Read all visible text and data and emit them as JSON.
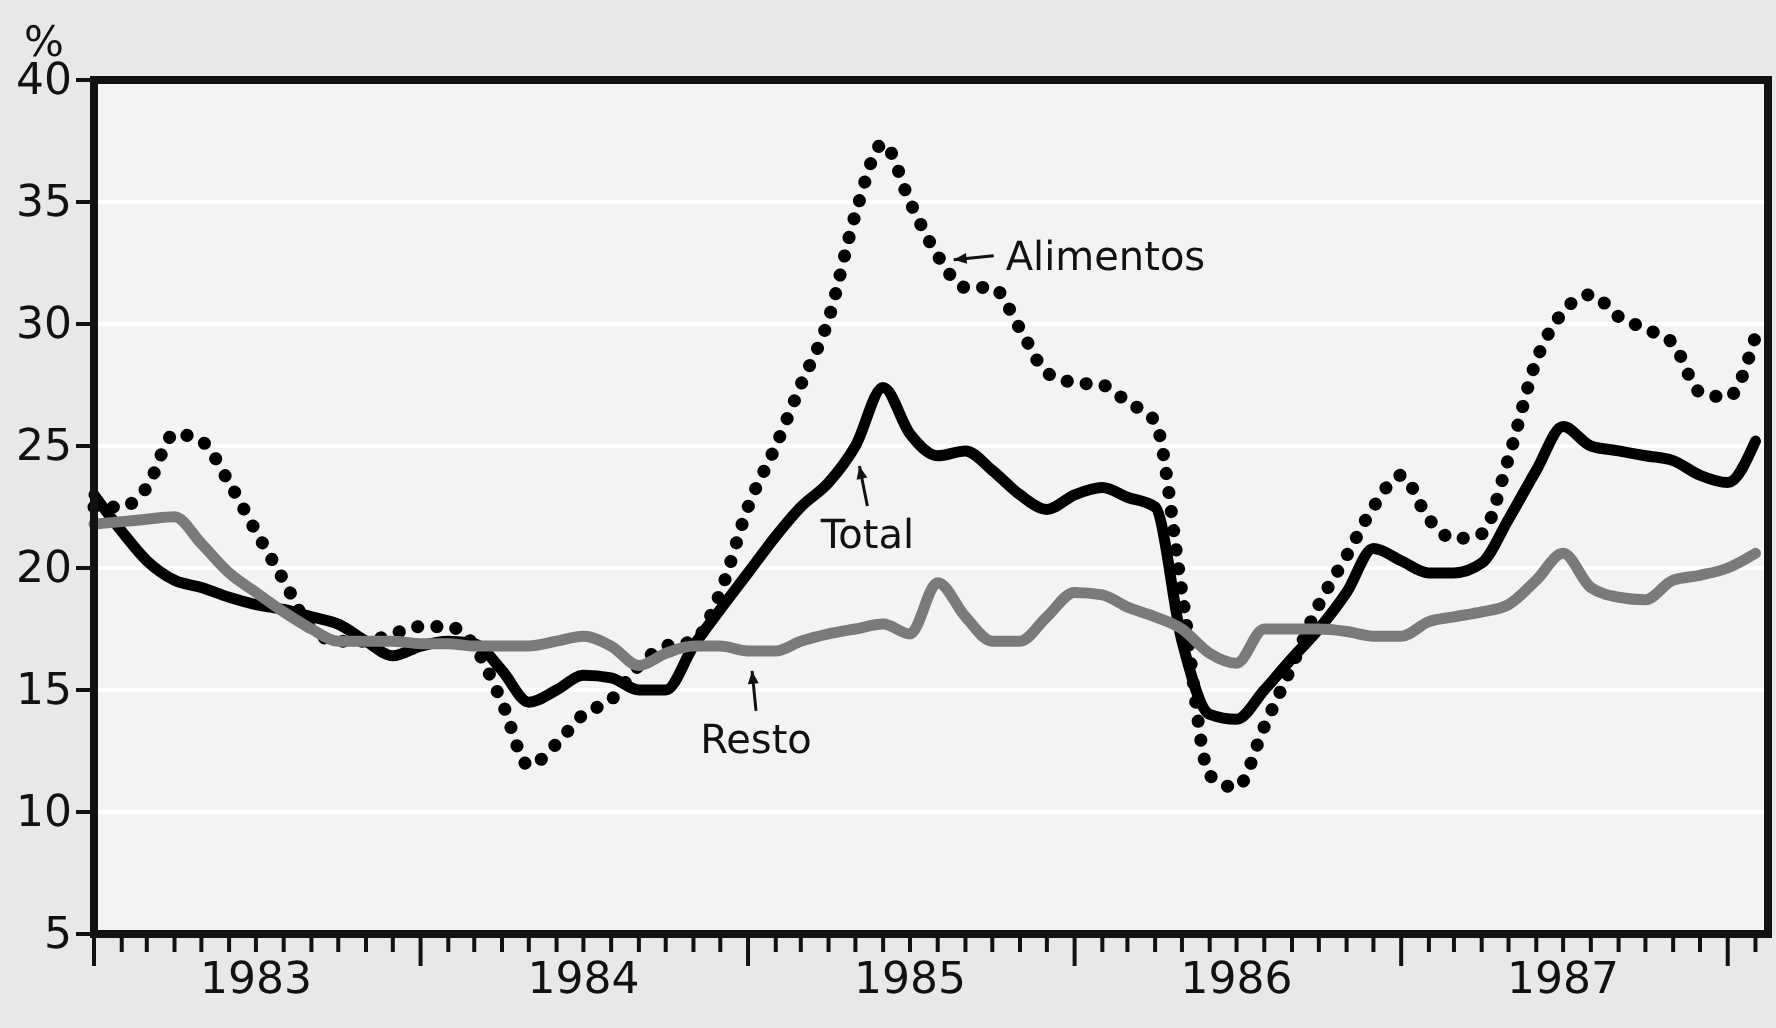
{
  "chart_data": {
    "type": "line",
    "ylabel": "%",
    "x": [
      "1983-01",
      "1983-02",
      "1983-03",
      "1983-04",
      "1983-05",
      "1983-06",
      "1983-07",
      "1983-08",
      "1983-09",
      "1983-10",
      "1983-11",
      "1983-12",
      "1984-01",
      "1984-02",
      "1984-03",
      "1984-04",
      "1984-05",
      "1984-06",
      "1984-07",
      "1984-08",
      "1984-09",
      "1984-10",
      "1984-11",
      "1984-12",
      "1985-01",
      "1985-02",
      "1985-03",
      "1985-04",
      "1985-05",
      "1985-06",
      "1985-07",
      "1985-08",
      "1985-09",
      "1985-10",
      "1985-11",
      "1985-12",
      "1986-01",
      "1986-02",
      "1986-03",
      "1986-04",
      "1986-05",
      "1986-06",
      "1986-07",
      "1986-08",
      "1986-09",
      "1986-10",
      "1986-11",
      "1986-12",
      "1987-01",
      "1987-02",
      "1987-03",
      "1987-04",
      "1987-05",
      "1987-06",
      "1987-07",
      "1987-08",
      "1987-09",
      "1987-10",
      "1987-11",
      "1987-12",
      "1988-01",
      "1988-02"
    ],
    "series": [
      {
        "color": "#000000",
        "line_style": "dotted",
        "values": [
          22.5,
          22.5,
          23.3,
          25.5,
          25.2,
          23.5,
          21.5,
          19.5,
          17.5,
          17.0,
          17.0,
          17.3,
          17.6,
          17.6,
          16.8,
          14.5,
          11.9,
          12.8,
          14.0,
          14.6,
          16.0,
          16.8,
          17.0,
          19.0,
          22.5,
          25.0,
          27.5,
          30.2,
          34.5,
          37.4,
          35.0,
          32.8,
          31.5,
          31.5,
          29.8,
          28.0,
          27.6,
          27.5,
          26.8,
          26.0,
          19.0,
          11.5,
          11.0,
          13.5,
          16.0,
          18.5,
          20.5,
          22.5,
          23.8,
          22.0,
          21.2,
          21.4,
          24.5,
          28.5,
          30.5,
          31.2,
          30.3,
          29.8,
          29.2,
          27.2,
          27.0,
          29.5
        ]
      },
      {
        "color": "#000000",
        "line_style": "solid",
        "values": [
          23.0,
          21.5,
          20.3,
          19.5,
          19.2,
          18.8,
          18.5,
          18.3,
          18.0,
          17.7,
          17.0,
          16.4,
          16.8,
          17.0,
          16.9,
          15.8,
          14.5,
          15.0,
          15.6,
          15.5,
          15.0,
          15.0,
          16.8,
          18.3,
          19.8,
          21.3,
          22.5,
          23.5,
          25.0,
          27.4,
          25.5,
          24.6,
          24.8,
          24.0,
          23.0,
          22.4,
          23.0,
          23.3,
          22.9,
          22.5,
          17.0,
          14.0,
          13.8,
          15.0,
          16.3,
          17.5,
          19.0,
          20.8,
          20.3,
          19.8,
          19.8,
          20.2,
          22.0,
          24.0,
          25.8,
          25.0,
          24.8,
          24.6,
          24.4,
          23.8,
          23.5,
          25.2
        ]
      },
      {
        "color": "#7a7a7a",
        "line_style": "solid",
        "values": [
          21.8,
          21.9,
          22.0,
          22.1,
          21.0,
          19.8,
          19.0,
          18.2,
          17.5,
          17.0,
          17.0,
          17.0,
          16.9,
          16.9,
          16.8,
          16.8,
          16.8,
          17.0,
          17.2,
          16.8,
          16.0,
          16.5,
          16.8,
          16.8,
          16.6,
          16.6,
          17.0,
          17.3,
          17.5,
          17.7,
          17.3,
          19.4,
          18.0,
          17.0,
          17.0,
          18.0,
          19.0,
          18.9,
          18.4,
          18.0,
          17.5,
          16.5,
          16.1,
          17.5,
          17.5,
          17.5,
          17.4,
          17.2,
          17.2,
          17.8,
          18.0,
          18.2,
          18.5,
          19.5,
          20.6,
          19.2,
          18.8,
          18.7,
          19.5,
          19.7,
          20.0,
          20.6
        ]
      }
    ],
    "annotations": [
      {
        "text": "Alimentos",
        "x": "1985-08",
        "y": 32.8
      },
      {
        "text": "Total",
        "x": "1985-05",
        "y": 25.0
      },
      {
        "text": "Resto",
        "x": "1985-01",
        "y": 16.6
      }
    ],
    "ylim": [
      5,
      40
    ],
    "yticks": [
      5,
      10,
      15,
      20,
      25,
      30,
      35,
      40
    ],
    "xlim": [
      "1983-01-01",
      "1988-02-15"
    ],
    "xticks": [
      {
        "value": "1983-07-01",
        "label": "1983"
      },
      {
        "value": "1984-07-01",
        "label": "1984"
      },
      {
        "value": "1985-07-01",
        "label": "1985"
      },
      {
        "value": "1986-07-01",
        "label": "1986"
      },
      {
        "value": "1987-07-01",
        "label": "1987"
      },
      {
        "value": "1983-01-01",
        "label": null
      },
      {
        "value": "1983-02-01",
        "label": null
      },
      {
        "value": "1983-03-01",
        "label": null
      },
      {
        "value": "1983-04-01",
        "label": null
      },
      {
        "value": "1983-05-01",
        "label": null
      },
      {
        "value": "1983-06-01",
        "label": null
      },
      {
        "value": "1983-08-01",
        "label": null
      },
      {
        "value": "1983-09-01",
        "label": null
      },
      {
        "value": "1983-10-01",
        "label": null
      },
      {
        "value": "1983-11-01",
        "label": null
      },
      {
        "value": "1983-12-01",
        "label": null
      },
      {
        "value": "1984-01-01",
        "label": null
      },
      {
        "value": "1984-02-01",
        "label": null
      },
      {
        "value": "1984-03-01",
        "label": null
      },
      {
        "value": "1984-04-01",
        "label": null
      },
      {
        "value": "1984-05-01",
        "label": null
      },
      {
        "value": "1984-06-01",
        "label": null
      },
      {
        "value": "1984-08-01",
        "label": null
      },
      {
        "value": "1984-09-01",
        "label": null
      },
      {
        "value": "1984-10-01",
        "label": null
      },
      {
        "value": "1984-11-01",
        "label": null
      },
      {
        "value": "1984-12-01",
        "label": null
      },
      {
        "value": "1985-01-01",
        "label": null
      },
      {
        "value": "1985-02-01",
        "label": null
      },
      {
        "value": "1985-03-01",
        "label": null
      },
      {
        "value": "1985-04-01",
        "label": null
      },
      {
        "value": "1985-05-01",
        "label": null
      },
      {
        "value": "1985-06-01",
        "label": null
      },
      {
        "value": "1985-08-01",
        "label": null
      },
      {
        "value": "1985-09-01",
        "label": null
      },
      {
        "value": "1985-10-01",
        "label": null
      },
      {
        "value": "1985-11-01",
        "label": null
      },
      {
        "value": "1985-12-01",
        "label": null
      },
      {
        "value": "1986-01-01",
        "label": null
      },
      {
        "value": "1986-02-01",
        "label": null
      },
      {
        "value": "1986-03-01",
        "label": null
      },
      {
        "value": "1986-04-01",
        "label": null
      },
      {
        "value": "1986-05-01",
        "label": null
      },
      {
        "value": "1986-06-01",
        "label": null
      },
      {
        "value": "1986-08-01",
        "label": null
      },
      {
        "value": "1986-09-01",
        "label": null
      },
      {
        "value": "1986-10-01",
        "label": null
      },
      {
        "value": "1986-11-01",
        "label": null
      },
      {
        "value": "1986-12-01",
        "label": null
      },
      {
        "value": "1987-01-01",
        "label": null
      },
      {
        "value": "1987-02-01",
        "label": null
      },
      {
        "value": "1987-03-01",
        "label": null
      },
      {
        "value": "1987-04-01",
        "label": null
      },
      {
        "value": "1987-05-01",
        "label": null
      },
      {
        "value": "1987-06-01",
        "label": null
      },
      {
        "value": "1987-08-01",
        "label": null
      },
      {
        "value": "1987-09-01",
        "label": null
      },
      {
        "value": "1987-10-01",
        "label": null
      },
      {
        "value": "1987-11-01",
        "label": null
      },
      {
        "value": "1987-12-01",
        "label": null
      },
      {
        "value": "1988-01-01",
        "label": null
      },
      {
        "value": "1988-02-01",
        "label": null
      }
    ],
    "grid": "y"
  }
}
